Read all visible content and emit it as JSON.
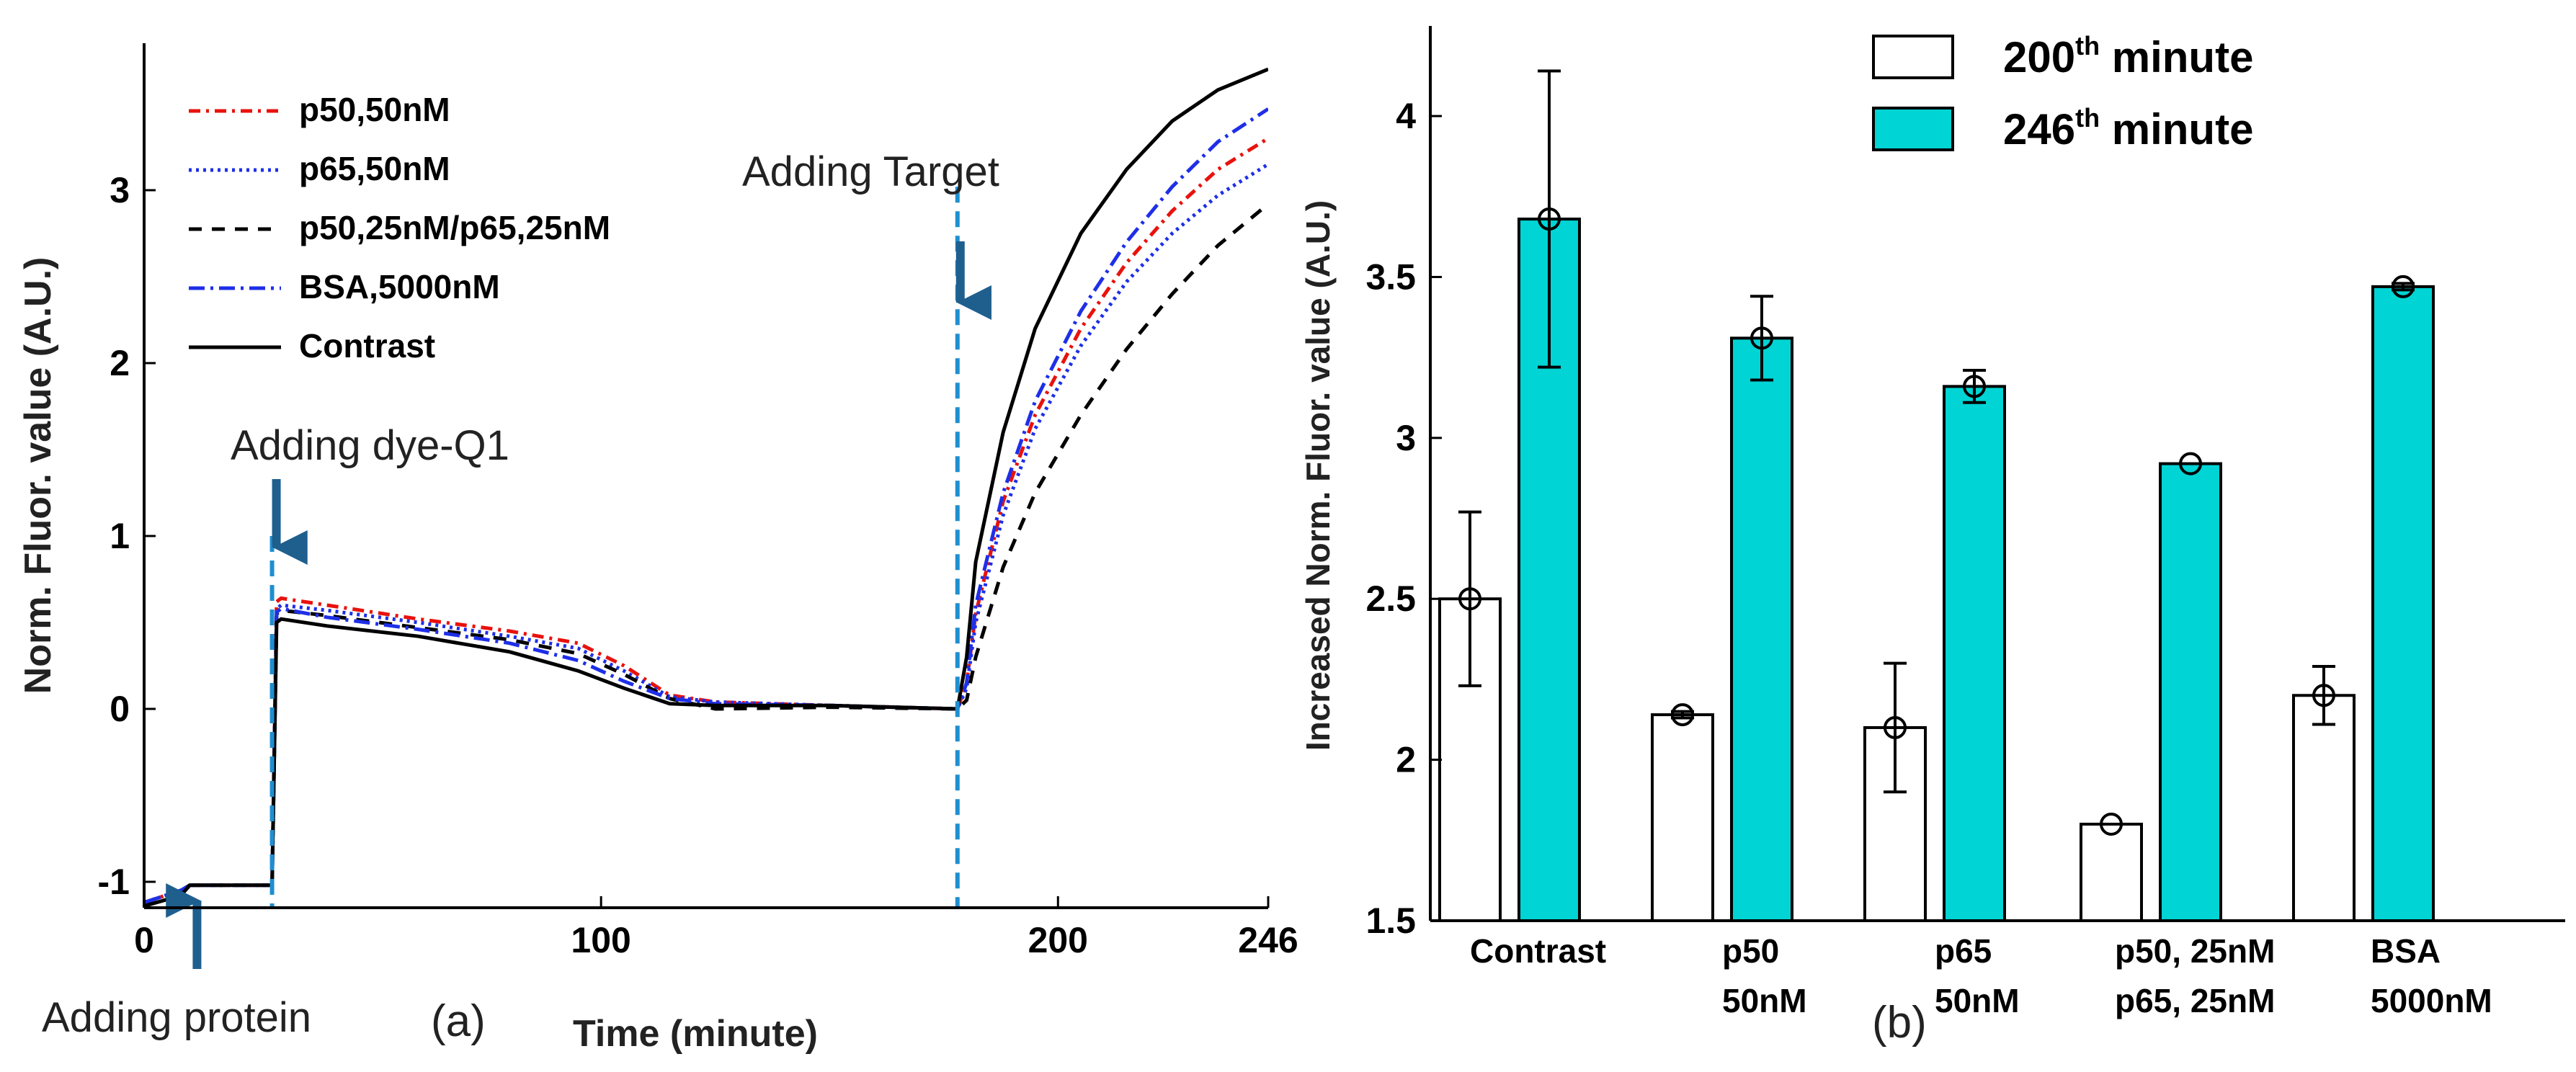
{
  "chart_data": [
    {
      "type": "line",
      "panel_label": "(a)",
      "xlabel": "Time (minute)",
      "ylabel": "Norm. Fluor. value (A.U.)",
      "xlim": [
        0,
        246
      ],
      "ylim": [
        -1.15,
        3.85
      ],
      "xticks": [
        0,
        100,
        200,
        246
      ],
      "yticks": [
        -1,
        0,
        1,
        2,
        3
      ],
      "grid": false,
      "legend_position": "top-left",
      "annotations": {
        "protein": {
          "label": "Adding protein",
          "x": 10
        },
        "dye": {
          "label": "Adding dye-Q1",
          "x": 28
        },
        "target": {
          "label": "Adding Target",
          "x": 178
        }
      },
      "series": [
        {
          "name": "p50,50nM",
          "color": "#e8120c",
          "dash": "16 8 4 8",
          "points": [
            [
              0,
              -1.12
            ],
            [
              8,
              -1.05
            ],
            [
              10,
              -1.02
            ],
            [
              28,
              -1.02
            ],
            [
              29,
              0.62
            ],
            [
              30,
              0.64
            ],
            [
              40,
              0.6
            ],
            [
              60,
              0.52
            ],
            [
              80,
              0.45
            ],
            [
              95,
              0.38
            ],
            [
              105,
              0.25
            ],
            [
              115,
              0.08
            ],
            [
              125,
              0.04
            ],
            [
              150,
              0.02
            ],
            [
              178,
              0.0
            ],
            [
              180,
              0.15
            ],
            [
              182,
              0.55
            ],
            [
              188,
              1.2
            ],
            [
              195,
              1.7
            ],
            [
              205,
              2.2
            ],
            [
              215,
              2.58
            ],
            [
              225,
              2.88
            ],
            [
              235,
              3.12
            ],
            [
              246,
              3.3
            ]
          ]
        },
        {
          "name": "p65,50nM",
          "color": "#1e2fe8",
          "dash": "4 6",
          "points": [
            [
              0,
              -1.12
            ],
            [
              8,
              -1.05
            ],
            [
              10,
              -1.02
            ],
            [
              28,
              -1.02
            ],
            [
              29,
              0.58
            ],
            [
              30,
              0.6
            ],
            [
              40,
              0.57
            ],
            [
              60,
              0.5
            ],
            [
              80,
              0.42
            ],
            [
              95,
              0.35
            ],
            [
              105,
              0.22
            ],
            [
              115,
              0.07
            ],
            [
              125,
              0.04
            ],
            [
              150,
              0.02
            ],
            [
              178,
              0.0
            ],
            [
              180,
              0.12
            ],
            [
              182,
              0.5
            ],
            [
              188,
              1.12
            ],
            [
              195,
              1.62
            ],
            [
              205,
              2.1
            ],
            [
              215,
              2.47
            ],
            [
              225,
              2.75
            ],
            [
              235,
              2.97
            ],
            [
              246,
              3.15
            ]
          ]
        },
        {
          "name": "p50,25nM/p65,25nM",
          "color": "#000000",
          "dash": "18 14",
          "points": [
            [
              0,
              -1.12
            ],
            [
              8,
              -1.05
            ],
            [
              10,
              -1.02
            ],
            [
              28,
              -1.02
            ],
            [
              29,
              0.55
            ],
            [
              30,
              0.57
            ],
            [
              40,
              0.54
            ],
            [
              60,
              0.47
            ],
            [
              80,
              0.4
            ],
            [
              95,
              0.32
            ],
            [
              105,
              0.2
            ],
            [
              115,
              0.06
            ],
            [
              125,
              0.0
            ],
            [
              150,
              0.01
            ],
            [
              178,
              0.0
            ],
            [
              180,
              0.05
            ],
            [
              182,
              0.3
            ],
            [
              188,
              0.82
            ],
            [
              195,
              1.25
            ],
            [
              205,
              1.7
            ],
            [
              215,
              2.08
            ],
            [
              225,
              2.4
            ],
            [
              235,
              2.68
            ],
            [
              246,
              2.92
            ]
          ]
        },
        {
          "name": "BSA,5000nM",
          "color": "#1e2fe8",
          "dash": "22 8 4 8",
          "points": [
            [
              0,
              -1.12
            ],
            [
              8,
              -1.05
            ],
            [
              10,
              -1.02
            ],
            [
              28,
              -1.02
            ],
            [
              29,
              0.56
            ],
            [
              30,
              0.58
            ],
            [
              40,
              0.53
            ],
            [
              60,
              0.46
            ],
            [
              80,
              0.38
            ],
            [
              95,
              0.28
            ],
            [
              105,
              0.16
            ],
            [
              115,
              0.06
            ],
            [
              125,
              0.03
            ],
            [
              150,
              0.02
            ],
            [
              178,
              0.0
            ],
            [
              180,
              0.15
            ],
            [
              182,
              0.6
            ],
            [
              188,
              1.25
            ],
            [
              195,
              1.78
            ],
            [
              205,
              2.3
            ],
            [
              215,
              2.7
            ],
            [
              225,
              3.02
            ],
            [
              235,
              3.28
            ],
            [
              246,
              3.47
            ]
          ]
        },
        {
          "name": "Contrast",
          "color": "#000000",
          "dash": "",
          "points": [
            [
              0,
              -1.14
            ],
            [
              8,
              -1.08
            ],
            [
              10,
              -1.02
            ],
            [
              28,
              -1.02
            ],
            [
              29,
              0.5
            ],
            [
              30,
              0.52
            ],
            [
              40,
              0.48
            ],
            [
              60,
              0.42
            ],
            [
              80,
              0.33
            ],
            [
              95,
              0.22
            ],
            [
              105,
              0.12
            ],
            [
              115,
              0.03
            ],
            [
              125,
              0.02
            ],
            [
              150,
              0.02
            ],
            [
              178,
              0.0
            ],
            [
              180,
              0.3
            ],
            [
              182,
              0.85
            ],
            [
              188,
              1.6
            ],
            [
              195,
              2.2
            ],
            [
              205,
              2.75
            ],
            [
              215,
              3.12
            ],
            [
              225,
              3.4
            ],
            [
              235,
              3.58
            ],
            [
              246,
              3.7
            ]
          ]
        }
      ]
    },
    {
      "type": "bar",
      "panel_label": "(b)",
      "xlabel": "",
      "ylabel": "Increased Norm. Fluor. value (A.U.)",
      "ylim": [
        1.5,
        4.28
      ],
      "yticks": [
        1.5,
        2,
        2.5,
        3,
        3.5,
        4
      ],
      "ytick_labels": [
        "1.5",
        "2",
        "2.5",
        "3",
        "3.5",
        "4"
      ],
      "legend_position": "top-center",
      "categories": [
        {
          "line1": "Contrast",
          "line2": ""
        },
        {
          "line1": "p50",
          "line2": "50nM"
        },
        {
          "line1": "p65",
          "line2": "50nM"
        },
        {
          "line1": "p50, 25nM",
          "line2": "p65, 25nM"
        },
        {
          "line1": "BSA",
          "line2": "5000nM"
        }
      ],
      "series": [
        {
          "name_prefix": "200",
          "name_sup": "th",
          "name_suffix": " minute",
          "color": "#ffffff",
          "values": [
            2.5,
            2.14,
            2.1,
            1.8,
            2.2
          ],
          "errors": [
            0.27,
            0.01,
            0.2,
            0.0,
            0.09
          ]
        },
        {
          "name_prefix": "246",
          "name_sup": "th",
          "name_suffix": " minute",
          "color": "#00d4d4",
          "values": [
            3.68,
            3.31,
            3.16,
            2.92,
            3.47
          ],
          "errors": [
            0.46,
            0.13,
            0.05,
            0.0,
            0.01
          ]
        }
      ]
    }
  ]
}
